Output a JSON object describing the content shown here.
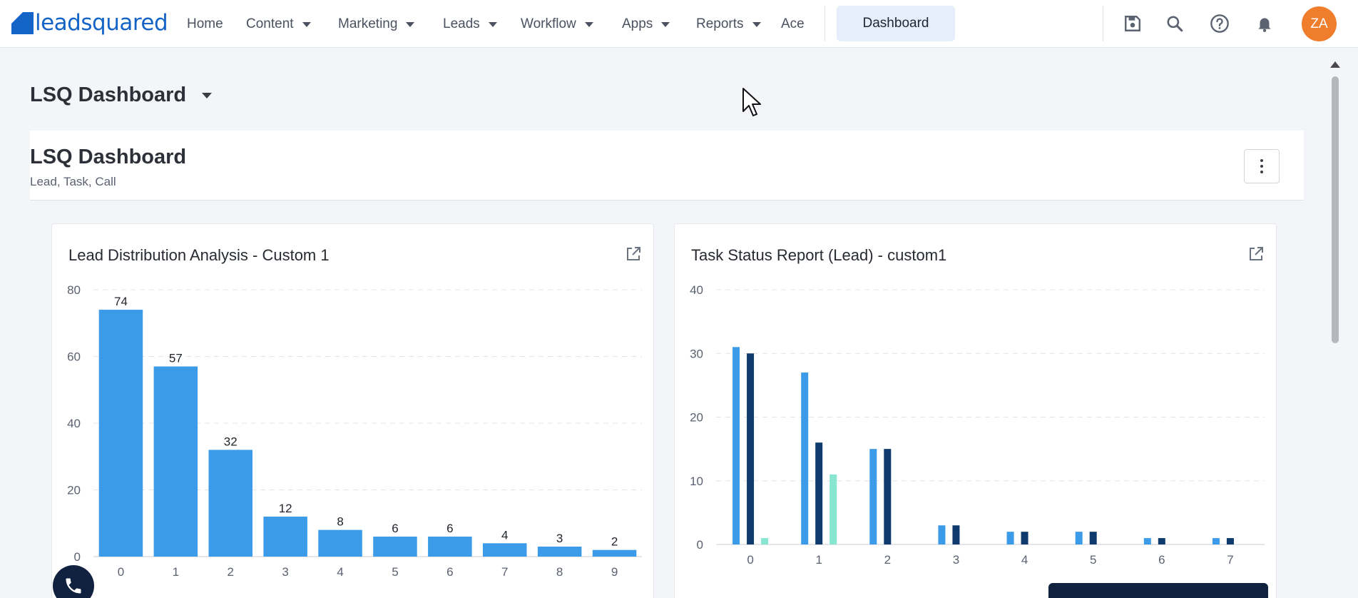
{
  "nav": {
    "logo_text": "leadsquared",
    "items": [
      {
        "label": "Home",
        "dropdown": false
      },
      {
        "label": "Content",
        "dropdown": true
      },
      {
        "label": "Marketing",
        "dropdown": true
      },
      {
        "label": "Leads",
        "dropdown": true
      },
      {
        "label": "Workflow",
        "dropdown": true
      },
      {
        "label": "Apps",
        "dropdown": true
      },
      {
        "label": "Reports",
        "dropdown": true
      },
      {
        "label": "Ace",
        "dropdown": false
      }
    ],
    "active_button": "Dashboard",
    "icons": [
      "save-icon",
      "search-icon",
      "help-icon",
      "bell-icon"
    ],
    "avatar_initials": "ZA",
    "avatar_color": "#ef7d2c",
    "accent": "#1464c8"
  },
  "page": {
    "selector_title": "LSQ Dashboard",
    "dashboard_title": "LSQ Dashboard",
    "dashboard_subtitle": "Lead, Task, Call"
  },
  "widgets": [
    {
      "title": "Lead Distribution Analysis - Custom 1"
    },
    {
      "title": "Task Status Report (Lead) - custom1"
    }
  ],
  "chart_data": [
    {
      "type": "bar",
      "title": "Lead Distribution Analysis - Custom 1",
      "categories": [
        "0",
        "1",
        "2",
        "3",
        "4",
        "5",
        "6",
        "7",
        "8",
        "9"
      ],
      "values": [
        74,
        57,
        32,
        12,
        8,
        6,
        6,
        4,
        3,
        2
      ],
      "data_labels": true,
      "ylim": [
        0,
        80
      ],
      "yticks": [
        0,
        20,
        40,
        60,
        80
      ],
      "grid": true,
      "color": "#3b9be8"
    },
    {
      "type": "bar",
      "title": "Task Status Report (Lead) - custom1",
      "categories": [
        "0",
        "1",
        "2",
        "3",
        "4",
        "5",
        "6",
        "7"
      ],
      "series": [
        {
          "values": [
            31,
            27,
            15,
            3,
            2,
            2,
            1,
            1
          ],
          "color": "#3b9be8"
        },
        {
          "values": [
            30,
            16,
            15,
            3,
            2,
            2,
            1,
            1
          ],
          "color": "#0e3a6e"
        },
        {
          "values": [
            1,
            11,
            0,
            0,
            0,
            0,
            0,
            0
          ],
          "color": "#86e6d2"
        }
      ],
      "ylim": [
        0,
        40
      ],
      "yticks": [
        0,
        10,
        20,
        30,
        40
      ],
      "grid": true
    }
  ]
}
